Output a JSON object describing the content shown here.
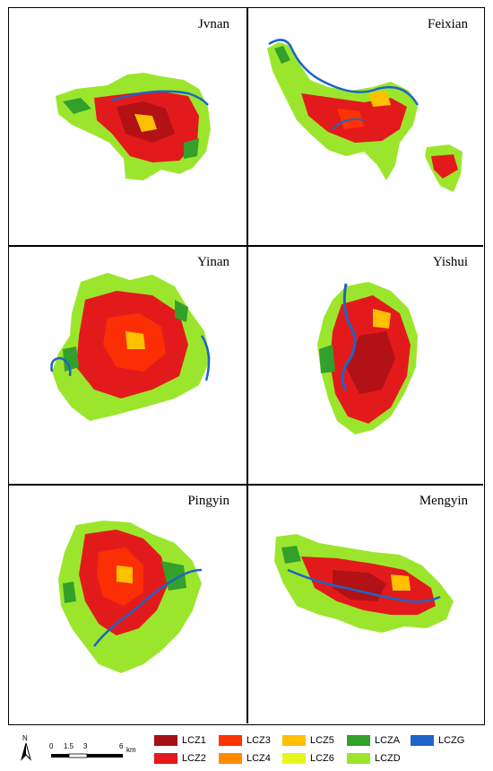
{
  "panels": [
    {
      "title": "Jvnan"
    },
    {
      "title": "Feixian"
    },
    {
      "title": "Yinan"
    },
    {
      "title": "Yishui"
    },
    {
      "title": "Pingyin"
    },
    {
      "title": "Mengyin"
    }
  ],
  "north_arrow": {
    "label": "N"
  },
  "scale_bar": {
    "ticks": [
      "0",
      "1.5",
      "3",
      "6"
    ],
    "unit": "km"
  },
  "legend": [
    {
      "label": "LCZ1",
      "color": "#a50f15"
    },
    {
      "label": "LCZ3",
      "color": "#ff3300"
    },
    {
      "label": "LCZ5",
      "color": "#ffc000"
    },
    {
      "label": "LCZA",
      "color": "#33a02c"
    },
    {
      "label": "LCZG",
      "color": "#1e64c8"
    },
    {
      "label": "LCZ2",
      "color": "#e31a1c"
    },
    {
      "label": "LCZ4",
      "color": "#ff8c00"
    },
    {
      "label": "LCZ6",
      "color": "#e6f51e"
    },
    {
      "label": "LCZD",
      "color": "#9be62d"
    }
  ]
}
